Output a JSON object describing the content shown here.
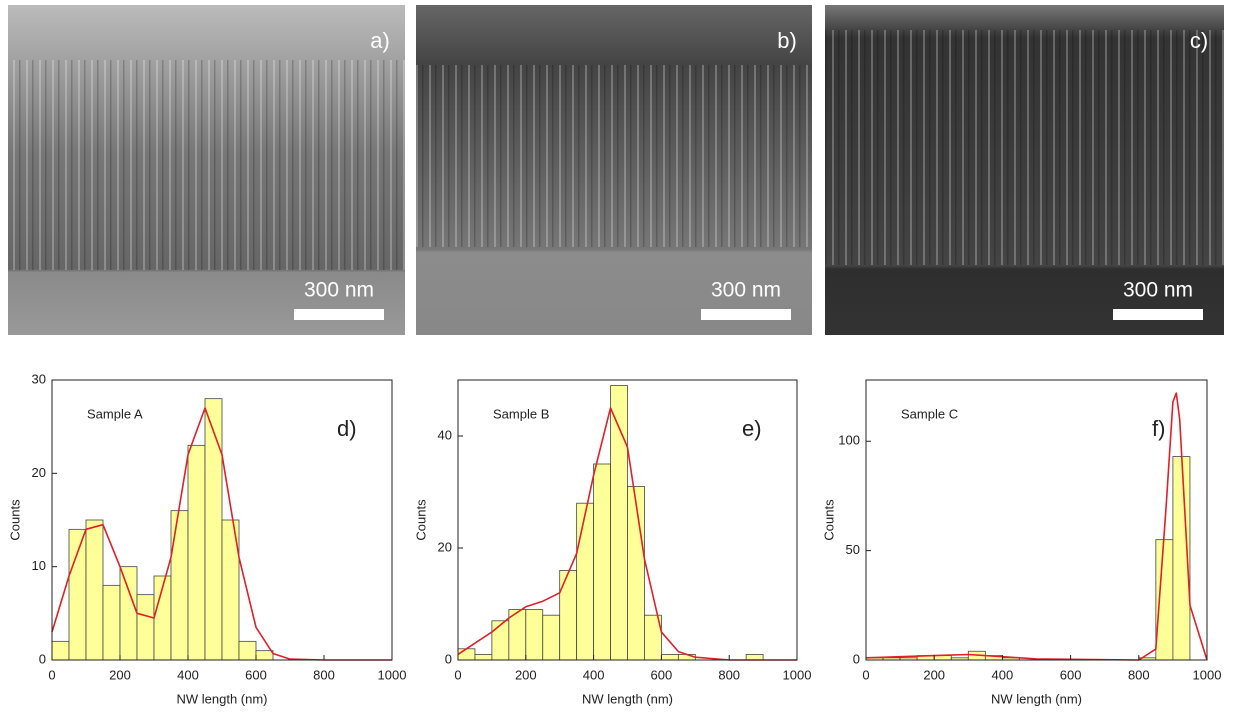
{
  "images": [
    {
      "label": "a)",
      "scale_bar": "300 nm"
    },
    {
      "label": "b)",
      "scale_bar": "300 nm"
    },
    {
      "label": "c)",
      "scale_bar": "300 nm"
    }
  ],
  "chart_data": [
    {
      "type": "histogram",
      "annotation": "Sample A",
      "panel": "d)",
      "x_label": "NW length (nm)",
      "y_label": "Counts",
      "bins": [
        0,
        50,
        100,
        150,
        200,
        250,
        300,
        350,
        400,
        450,
        500,
        550,
        600,
        650
      ],
      "counts": [
        2,
        14,
        15,
        8,
        10,
        7,
        9,
        16,
        23,
        28,
        15,
        2,
        1
      ],
      "color": "#ffff99",
      "fit": {
        "color": "#e0202a",
        "x": [
          0,
          50,
          100,
          150,
          200,
          250,
          300,
          350,
          400,
          450,
          500,
          550,
          600,
          650,
          700,
          800,
          1000
        ],
        "values": [
          3,
          9,
          14,
          14.5,
          10,
          5,
          4.5,
          11,
          22,
          27,
          22,
          11,
          3.5,
          0.7,
          0.1,
          0,
          0
        ]
      },
      "xlim": [
        0,
        1000
      ],
      "xticks": [
        0,
        200,
        400,
        600,
        800,
        1000
      ],
      "ylim": [
        0,
        30
      ],
      "yticks": [
        0,
        10,
        20,
        30
      ]
    },
    {
      "type": "histogram",
      "annotation": "Sample B",
      "panel": "e)",
      "x_label": "NW length (nm)",
      "y_label": "Counts",
      "bins": [
        0,
        50,
        100,
        150,
        200,
        250,
        300,
        350,
        400,
        450,
        500,
        550,
        600,
        650,
        700,
        750,
        800,
        850,
        900
      ],
      "counts": [
        2,
        1,
        7,
        9,
        9,
        8,
        16,
        28,
        35,
        49,
        31,
        8,
        1,
        1,
        0,
        0,
        0,
        1
      ],
      "color": "#ffff99",
      "fit": {
        "color": "#e0202a",
        "x": [
          0,
          50,
          100,
          150,
          200,
          250,
          300,
          350,
          400,
          450,
          500,
          550,
          600,
          650,
          700,
          800,
          1000
        ],
        "values": [
          1,
          3,
          5,
          7.5,
          9.5,
          10.5,
          12,
          19,
          33,
          45,
          38,
          18,
          5,
          1.5,
          0.5,
          0,
          0
        ]
      },
      "xlim": [
        0,
        1000
      ],
      "xticks": [
        0,
        200,
        400,
        600,
        800,
        1000
      ],
      "ylim": [
        0,
        50
      ],
      "yticks": [
        0,
        20,
        40
      ]
    },
    {
      "type": "histogram",
      "annotation": "Sample C",
      "panel": "f)",
      "x_label": "NW length (nm)",
      "y_label": "Counts",
      "bins": [
        0,
        50,
        100,
        150,
        200,
        250,
        300,
        350,
        400,
        450,
        500,
        550,
        600,
        650,
        700,
        750,
        800,
        850,
        900,
        950
      ],
      "counts": [
        1,
        1,
        1,
        2,
        2,
        1,
        4,
        2,
        1,
        0,
        0,
        0,
        0,
        0,
        0,
        0,
        1,
        55,
        93
      ],
      "color": "#ffff99",
      "fit": {
        "color": "#e0202a",
        "x": [
          0,
          200,
          300,
          400,
          500,
          800,
          850,
          880,
          900,
          910,
          920,
          950,
          1000
        ],
        "values": [
          1,
          2,
          2.5,
          1.5,
          0.5,
          0,
          5,
          70,
          118,
          122,
          110,
          25,
          0
        ]
      },
      "xlim": [
        0,
        1000
      ],
      "xticks": [
        0,
        200,
        400,
        600,
        800,
        1000
      ],
      "ylim": [
        0,
        128
      ],
      "yticks": [
        0,
        50,
        100
      ]
    }
  ]
}
